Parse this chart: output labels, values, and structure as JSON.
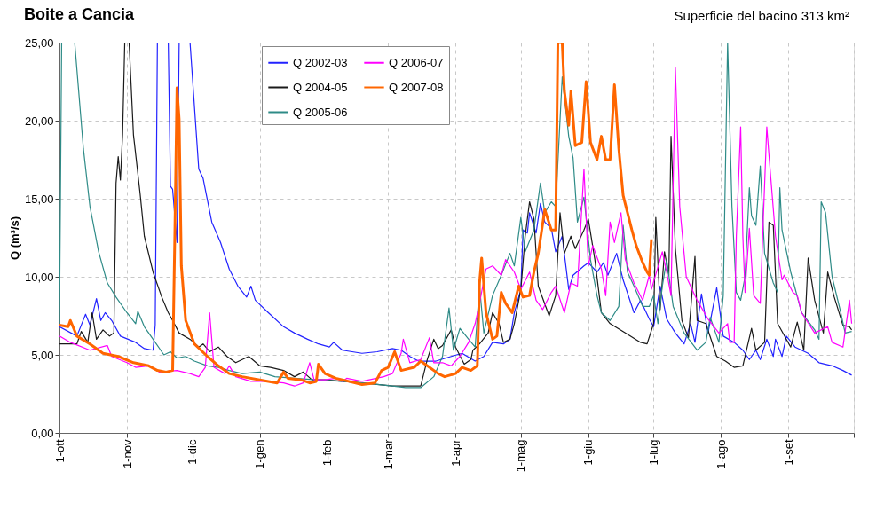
{
  "chart_data": {
    "type": "line",
    "title": "Boite a Cancia",
    "subtitle": "Superficie del bacino 313 km²",
    "ylabel": "Q (m³/s)",
    "xlim": [
      "2002-10-01",
      "2003-10-01"
    ],
    "xticks": [
      {
        "value": "2002-10-01",
        "label": "1-ott"
      },
      {
        "value": "2002-11-01",
        "label": "1-nov"
      },
      {
        "value": "2002-12-01",
        "label": "1-dic"
      },
      {
        "value": "2003-01-01",
        "label": "1-gen"
      },
      {
        "value": "2003-02-01",
        "label": "1-feb"
      },
      {
        "value": "2003-03-01",
        "label": "1-mar"
      },
      {
        "value": "2003-04-01",
        "label": "1-apr"
      },
      {
        "value": "2003-05-01",
        "label": "1-mag"
      },
      {
        "value": "2003-06-01",
        "label": "1-giu"
      },
      {
        "value": "2003-07-01",
        "label": "1-lug"
      },
      {
        "value": "2003-08-01",
        "label": "1-ago"
      },
      {
        "value": "2003-09-01",
        "label": "1-set"
      },
      {
        "value": "2003-10-01",
        "label": null
      }
    ],
    "ylim": [
      0,
      25
    ],
    "yticks": [
      {
        "value": 0,
        "label": "0,00"
      },
      {
        "value": 5,
        "label": "5,00"
      },
      {
        "value": 10,
        "label": "10,00"
      },
      {
        "value": 15,
        "label": "15,00"
      },
      {
        "value": 20,
        "label": "20,00"
      },
      {
        "value": 25,
        "label": "25,00"
      }
    ],
    "grid": true,
    "legend": "top",
    "line_style": "solid",
    "series": [
      {
        "name": "Q 2002-03",
        "color": "#2222ff",
        "x": [
          "2002-10-01",
          "2002-10-09",
          "2002-10-13",
          "2002-10-15",
          "2002-10-18",
          "2002-10-20",
          "2002-10-22",
          "2002-10-25",
          "2002-10-29",
          "2002-11-05",
          "2002-11-09",
          "2002-11-13",
          "2002-11-14",
          "2002-11-15",
          "2002-11-20",
          "2002-11-21",
          "2002-11-22",
          "2002-11-24",
          "2002-11-25",
          "2002-11-30",
          "2002-12-04",
          "2002-12-06",
          "2002-12-10",
          "2002-12-14",
          "2002-12-18",
          "2002-12-22",
          "2002-12-26",
          "2002-12-28",
          "2002-12-30",
          "2003-01-05",
          "2003-01-12",
          "2003-01-17",
          "2003-01-23",
          "2003-01-28",
          "2003-02-02",
          "2003-02-04",
          "2003-02-08",
          "2003-02-17",
          "2003-02-24",
          "2003-03-03",
          "2003-03-07",
          "2003-03-11",
          "2003-03-15",
          "2003-03-23",
          "2003-03-30",
          "2003-04-04",
          "2003-04-10",
          "2003-04-14",
          "2003-04-18",
          "2003-04-23",
          "2003-04-26",
          "2003-04-28",
          "2003-05-01",
          "2003-05-02",
          "2003-05-04",
          "2003-05-05",
          "2003-05-08",
          "2003-05-10",
          "2003-05-12",
          "2003-05-15",
          "2003-05-17",
          "2003-05-20",
          "2003-05-23",
          "2003-05-25",
          "2003-05-30",
          "2003-06-01",
          "2003-06-05",
          "2003-06-08",
          "2003-06-10",
          "2003-06-14",
          "2003-06-17",
          "2003-06-22",
          "2003-06-25",
          "2003-06-29",
          "2003-07-01",
          "2003-07-04",
          "2003-07-07",
          "2003-07-11",
          "2003-07-15",
          "2003-07-18",
          "2003-07-20",
          "2003-07-23",
          "2003-07-26",
          "2003-07-30",
          "2003-08-02",
          "2003-08-07",
          "2003-08-11",
          "2003-08-14",
          "2003-08-17",
          "2003-08-19",
          "2003-08-22",
          "2003-08-25",
          "2003-08-26",
          "2003-08-29",
          "2003-08-31",
          "2003-09-04",
          "2003-09-10",
          "2003-09-15",
          "2003-09-21",
          "2003-09-26",
          "2003-09-30"
        ],
        "values": [
          6.8,
          6.2,
          7.6,
          6.9,
          8.6,
          7.2,
          7.7,
          7.2,
          6.2,
          5.8,
          5.4,
          5.3,
          6.9,
          25,
          25,
          15.8,
          15.6,
          12.2,
          25,
          25,
          16.9,
          16.3,
          13.5,
          12.2,
          10.5,
          9.4,
          8.7,
          9.4,
          8.5,
          7.7,
          6.8,
          6.4,
          6.0,
          5.7,
          5.5,
          5.8,
          5.3,
          5.1,
          5.2,
          5.4,
          5.3,
          4.9,
          4.6,
          4.6,
          4.9,
          5.1,
          4.6,
          4.9,
          5.8,
          5.7,
          6.0,
          7.7,
          9.2,
          13.0,
          12.8,
          14.1,
          12.8,
          14.7,
          13.5,
          13.1,
          11.6,
          12.6,
          9.2,
          10.1,
          10.7,
          10.9,
          10.3,
          10.9,
          10.1,
          11.5,
          9.8,
          7.7,
          8.5,
          7.3,
          6.8,
          9.4,
          7.3,
          6.4,
          5.7,
          7.0,
          5.8,
          8.9,
          6.4,
          9.3,
          6.2,
          5.8,
          5.3,
          4.7,
          5.3,
          4.7,
          6.0,
          4.9,
          6.0,
          4.9,
          6.2,
          5.5,
          5.1,
          4.5,
          4.3,
          4.0,
          3.7
        ]
      },
      {
        "name": "Q 2004-05",
        "color": "#1a1a1a",
        "x": [
          "2002-10-01",
          "2002-10-09",
          "2002-10-11",
          "2002-10-14",
          "2002-10-16",
          "2002-10-18",
          "2002-10-21",
          "2002-10-24",
          "2002-10-26",
          "2002-10-27",
          "2002-10-28",
          "2002-10-29",
          "2002-10-30",
          "2002-10-31",
          "2002-11-02",
          "2002-11-04",
          "2002-11-07",
          "2002-11-09",
          "2002-11-13",
          "2002-11-17",
          "2002-11-20",
          "2002-11-22",
          "2002-11-25",
          "2002-11-30",
          "2002-12-04",
          "2002-12-06",
          "2002-12-09",
          "2002-12-13",
          "2002-12-17",
          "2002-12-21",
          "2002-12-27",
          "2003-01-01",
          "2003-01-06",
          "2003-01-12",
          "2003-01-17",
          "2003-01-21",
          "2003-01-25",
          "2003-01-31",
          "2003-02-08",
          "2003-02-17",
          "2003-02-24",
          "2003-03-03",
          "2003-03-11",
          "2003-03-16",
          "2003-03-19",
          "2003-03-22",
          "2003-03-24",
          "2003-03-26",
          "2003-03-30",
          "2003-04-01",
          "2003-04-05",
          "2003-04-08",
          "2003-04-09",
          "2003-04-12",
          "2003-04-16",
          "2003-04-18",
          "2003-04-21",
          "2003-04-23",
          "2003-04-26",
          "2003-04-28",
          "2003-05-01",
          "2003-05-03",
          "2003-05-05",
          "2003-05-07",
          "2003-05-09",
          "2003-05-14",
          "2003-05-17",
          "2003-05-19",
          "2003-05-21",
          "2003-05-24",
          "2003-05-26",
          "2003-05-30",
          "2003-06-01",
          "2003-06-04",
          "2003-06-07",
          "2003-06-11",
          "2003-06-18",
          "2003-06-25",
          "2003-06-28",
          "2003-07-01",
          "2003-07-02",
          "2003-07-04",
          "2003-07-06",
          "2003-07-08",
          "2003-07-09",
          "2003-07-11",
          "2003-07-14",
          "2003-07-17",
          "2003-07-20",
          "2003-07-21",
          "2003-07-25",
          "2003-07-30",
          "2003-08-03",
          "2003-08-07",
          "2003-08-11",
          "2003-08-15",
          "2003-08-17",
          "2003-08-21",
          "2003-08-23",
          "2003-08-25",
          "2003-08-27",
          "2003-09-02",
          "2003-09-05",
          "2003-09-08",
          "2003-09-10",
          "2003-09-13",
          "2003-09-17",
          "2003-09-19",
          "2003-09-22",
          "2003-09-26",
          "2003-09-29",
          "2003-09-30"
        ],
        "values": [
          5.7,
          5.7,
          6.5,
          5.8,
          7.7,
          6.0,
          6.6,
          6.2,
          6.4,
          16.0,
          17.7,
          16.2,
          19.1,
          25,
          25,
          19.1,
          15.4,
          12.6,
          10.3,
          8.7,
          7.7,
          7.2,
          6.4,
          6.0,
          5.5,
          5.7,
          5.2,
          5.5,
          4.9,
          4.5,
          4.9,
          4.3,
          4.2,
          4.0,
          3.6,
          3.9,
          3.4,
          3.4,
          3.3,
          3.2,
          3.1,
          3.0,
          3.0,
          3.0,
          4.7,
          6.0,
          5.4,
          5.6,
          6.6,
          5.5,
          4.4,
          4.7,
          5.3,
          5.7,
          6.4,
          7.7,
          7.0,
          5.8,
          6.0,
          7.0,
          9.2,
          12.6,
          14.8,
          13.7,
          9.4,
          7.5,
          8.8,
          14.1,
          11.5,
          12.6,
          11.8,
          13.0,
          13.7,
          11.1,
          7.7,
          7.0,
          6.4,
          5.8,
          5.7,
          7.0,
          13.8,
          7.9,
          11.6,
          10.1,
          19.0,
          11.8,
          7.2,
          6.1,
          11.3,
          7.2,
          7.0,
          4.9,
          4.6,
          4.2,
          4.3,
          6.7,
          5.3,
          5.8,
          13.5,
          13.3,
          7.0,
          5.5,
          7.1,
          5.3,
          11.2,
          8.5,
          6.4,
          10.3,
          8.7,
          6.9,
          6.8,
          6.6
        ]
      },
      {
        "name": "Q 2005-06",
        "color": "#2e8b87",
        "x": [
          "2002-10-01",
          "2002-10-02",
          "2002-10-08",
          "2002-10-12",
          "2002-10-15",
          "2002-10-19",
          "2002-10-23",
          "2002-10-27",
          "2002-11-01",
          "2002-11-05",
          "2002-11-06",
          "2002-11-09",
          "2002-11-13",
          "2002-11-18",
          "2002-11-21",
          "2002-11-24",
          "2002-11-28",
          "2002-12-02",
          "2002-12-08",
          "2002-12-13",
          "2002-12-18",
          "2002-12-24",
          "2003-01-01",
          "2003-01-08",
          "2003-01-17",
          "2003-01-27",
          "2003-02-08",
          "2003-02-17",
          "2003-03-03",
          "2003-03-09",
          "2003-03-16",
          "2003-03-22",
          "2003-03-26",
          "2003-03-29",
          "2003-03-31",
          "2003-04-03",
          "2003-04-07",
          "2003-04-10",
          "2003-04-12",
          "2003-04-14",
          "2003-04-18",
          "2003-04-22",
          "2003-04-26",
          "2003-04-28",
          "2003-05-01",
          "2003-05-03",
          "2003-05-07",
          "2003-05-10",
          "2003-05-12",
          "2003-05-15",
          "2003-05-17",
          "2003-05-20",
          "2003-05-23",
          "2003-05-25",
          "2003-05-27",
          "2003-05-30",
          "2003-06-02",
          "2003-06-05",
          "2003-06-07",
          "2003-06-11",
          "2003-06-15",
          "2003-06-17",
          "2003-06-19",
          "2003-06-22",
          "2003-06-26",
          "2003-06-29",
          "2003-07-01",
          "2003-07-03",
          "2003-07-05",
          "2003-07-07",
          "2003-07-10",
          "2003-07-15",
          "2003-07-21",
          "2003-07-25",
          "2003-07-27",
          "2003-07-31",
          "2003-08-02",
          "2003-08-04",
          "2003-08-06",
          "2003-08-08",
          "2003-08-10",
          "2003-08-12",
          "2003-08-14",
          "2003-08-15",
          "2003-08-17",
          "2003-08-19",
          "2003-08-21",
          "2003-08-25",
          "2003-08-27",
          "2003-08-28",
          "2003-08-29",
          "2003-09-02",
          "2003-09-07",
          "2003-09-13",
          "2003-09-15",
          "2003-09-16",
          "2003-09-18",
          "2003-09-21",
          "2003-09-25",
          "2003-09-27",
          "2003-09-30"
        ],
        "values": [
          7.0,
          25,
          25,
          18.2,
          14.5,
          11.6,
          9.6,
          8.7,
          7.7,
          7.0,
          7.8,
          6.8,
          6.0,
          5.0,
          5.2,
          4.8,
          4.9,
          4.6,
          4.3,
          4.2,
          4.0,
          3.8,
          3.9,
          3.6,
          3.5,
          3.4,
          3.3,
          3.2,
          3.0,
          2.9,
          2.9,
          3.6,
          4.9,
          8.0,
          5.3,
          6.7,
          6.0,
          5.5,
          9.4,
          6.4,
          8.8,
          10.1,
          11.5,
          10.7,
          13.8,
          11.6,
          13.0,
          16.0,
          14.1,
          14.8,
          14.5,
          22.8,
          19.0,
          17.6,
          13.5,
          15.1,
          11.1,
          8.8,
          7.7,
          7.2,
          8.1,
          13.3,
          10.3,
          9.4,
          8.1,
          8.1,
          8.8,
          7.0,
          9.4,
          11.1,
          8.1,
          6.4,
          5.3,
          5.8,
          7.4,
          5.8,
          8.8,
          25,
          14.5,
          9.0,
          8.5,
          10.0,
          15.7,
          13.9,
          13.3,
          17.1,
          11.5,
          9.6,
          9.0,
          15.7,
          13.0,
          10.3,
          7.7,
          6.6,
          6.0,
          14.8,
          14.1,
          10.0,
          7.7,
          6.4,
          6.5
        ]
      },
      {
        "name": "Q 2006-07",
        "color": "#ff00ff",
        "x": [
          "2002-10-01",
          "2002-10-06",
          "2002-10-15",
          "2002-10-23",
          "2002-10-25",
          "2002-11-01",
          "2002-11-05",
          "2002-11-11",
          "2002-11-16",
          "2002-11-24",
          "2002-11-30",
          "2002-12-04",
          "2002-12-07",
          "2002-12-09",
          "2002-12-11",
          "2002-12-16",
          "2002-12-18",
          "2002-12-21",
          "2002-12-28",
          "2003-01-04",
          "2003-01-12",
          "2003-01-17",
          "2003-01-21",
          "2003-01-24",
          "2003-01-26",
          "2003-01-31",
          "2003-02-05",
          "2003-02-08",
          "2003-02-10",
          "2003-02-17",
          "2003-02-27",
          "2003-03-03",
          "2003-03-07",
          "2003-03-08",
          "2003-03-11",
          "2003-03-16",
          "2003-03-20",
          "2003-03-22",
          "2003-03-26",
          "2003-03-30",
          "2003-04-03",
          "2003-04-07",
          "2003-04-10",
          "2003-04-12",
          "2003-04-15",
          "2003-04-18",
          "2003-04-22",
          "2003-04-24",
          "2003-04-28",
          "2003-05-01",
          "2003-05-05",
          "2003-05-08",
          "2003-05-11",
          "2003-05-15",
          "2003-05-17",
          "2003-05-21",
          "2003-05-24",
          "2003-05-27",
          "2003-05-30",
          "2003-06-01",
          "2003-06-03",
          "2003-06-07",
          "2003-06-09",
          "2003-06-11",
          "2003-06-13",
          "2003-06-16",
          "2003-06-18",
          "2003-06-22",
          "2003-06-26",
          "2003-06-29",
          "2003-06-30",
          "2003-07-05",
          "2003-07-07",
          "2003-07-09",
          "2003-07-11",
          "2003-07-13",
          "2003-07-16",
          "2003-07-21",
          "2003-07-26",
          "2003-07-31",
          "2003-08-04",
          "2003-08-05",
          "2003-08-07",
          "2003-08-08",
          "2003-08-10",
          "2003-08-11",
          "2003-08-12",
          "2003-08-14",
          "2003-08-16",
          "2003-08-19",
          "2003-08-20",
          "2003-08-22",
          "2003-08-23",
          "2003-08-26",
          "2003-08-29",
          "2003-08-30",
          "2003-09-03",
          "2003-09-05",
          "2003-09-07",
          "2003-09-13",
          "2003-09-19",
          "2003-09-21",
          "2003-09-26",
          "2003-09-29",
          "2003-09-30"
        ],
        "values": [
          6.2,
          5.8,
          5.3,
          5.6,
          4.9,
          4.5,
          4.2,
          4.3,
          3.9,
          4.0,
          3.8,
          3.6,
          4.2,
          7.7,
          4.2,
          3.8,
          4.3,
          3.6,
          3.3,
          3.3,
          3.2,
          3.0,
          3.2,
          4.5,
          3.4,
          3.4,
          3.5,
          3.3,
          3.5,
          3.3,
          3.6,
          3.8,
          5.1,
          6.0,
          4.5,
          4.7,
          6.1,
          4.5,
          4.5,
          4.3,
          4.9,
          5.8,
          7.0,
          8.3,
          10.5,
          10.7,
          10.1,
          11.1,
          10.3,
          9.2,
          10.3,
          8.5,
          7.9,
          9.0,
          9.4,
          7.7,
          9.6,
          9.4,
          16.9,
          10.7,
          12.0,
          10.5,
          8.8,
          13.5,
          12.2,
          14.1,
          11.1,
          9.6,
          8.5,
          10.1,
          9.2,
          11.6,
          10.3,
          8.8,
          23.4,
          14.5,
          10.0,
          8.5,
          7.3,
          6.4,
          7.0,
          5.8,
          5.8,
          12.6,
          19.6,
          12.6,
          9.0,
          13.1,
          8.8,
          8.3,
          12.2,
          19.6,
          17.8,
          12.6,
          9.8,
          10.1,
          9.0,
          8.8,
          7.7,
          6.4,
          6.8,
          5.8,
          5.5,
          8.5,
          7.0
        ]
      },
      {
        "name": "Q 2007-08",
        "color": "#ff6600",
        "x": [
          "2002-10-01",
          "2002-10-05",
          "2002-10-06",
          "2002-10-09",
          "2002-10-15",
          "2002-10-21",
          "2002-10-28",
          "2002-11-04",
          "2002-11-11",
          "2002-11-15",
          "2002-11-19",
          "2002-11-22",
          "2002-11-23",
          "2002-11-24",
          "2002-11-25",
          "2002-11-26",
          "2002-11-28",
          "2002-12-02",
          "2002-12-08",
          "2002-12-13",
          "2002-12-18",
          "2002-12-24",
          "2003-01-01",
          "2003-01-09",
          "2003-01-12",
          "2003-01-14",
          "2003-01-20",
          "2003-01-24",
          "2003-01-27",
          "2003-01-28",
          "2003-01-31",
          "2003-02-05",
          "2003-02-08",
          "2003-02-17",
          "2003-02-23",
          "2003-02-26",
          "2003-03-01",
          "2003-03-04",
          "2003-03-07",
          "2003-03-13",
          "2003-03-16",
          "2003-03-20",
          "2003-03-24",
          "2003-03-27",
          "2003-04-01",
          "2003-04-04",
          "2003-04-08",
          "2003-04-11",
          "2003-04-12",
          "2003-04-13",
          "2003-04-15",
          "2003-04-18",
          "2003-04-20",
          "2003-04-22",
          "2003-04-24",
          "2003-04-27",
          "2003-04-30",
          "2003-05-02",
          "2003-05-05",
          "2003-05-07",
          "2003-05-09",
          "2003-05-12",
          "2003-05-15",
          "2003-05-17",
          "2003-05-18",
          "2003-05-20",
          "2003-05-21",
          "2003-05-23",
          "2003-05-24",
          "2003-05-26",
          "2003-05-29",
          "2003-05-31",
          "2003-06-02",
          "2003-06-05",
          "2003-06-07",
          "2003-06-09",
          "2003-06-11",
          "2003-06-13",
          "2003-06-15",
          "2003-06-17",
          "2003-06-21",
          "2003-06-23",
          "2003-06-26",
          "2003-06-28",
          "2003-06-29",
          "2003-06-30"
        ],
        "values": [
          6.9,
          6.8,
          7.2,
          6.2,
          5.7,
          5.1,
          4.9,
          4.5,
          4.3,
          4.0,
          3.9,
          4.0,
          12.6,
          22.1,
          20.1,
          10.7,
          7.2,
          5.7,
          4.9,
          4.3,
          3.8,
          3.6,
          3.4,
          3.2,
          3.9,
          3.5,
          3.4,
          3.2,
          3.3,
          4.4,
          3.8,
          3.5,
          3.4,
          3.1,
          3.2,
          4.0,
          4.2,
          5.2,
          4.0,
          4.2,
          4.6,
          4.2,
          3.8,
          3.6,
          3.8,
          4.2,
          4.0,
          4.3,
          9.6,
          11.2,
          7.7,
          6.0,
          6.2,
          9.0,
          8.3,
          7.7,
          9.4,
          8.7,
          8.8,
          10.3,
          11.5,
          14.3,
          13.0,
          13.0,
          25,
          25,
          21.9,
          19.7,
          21.9,
          18.4,
          18.6,
          22.5,
          18.6,
          17.5,
          19.0,
          17.5,
          17.5,
          22.3,
          18.2,
          15.2,
          13.0,
          12.0,
          10.9,
          10.3,
          10.1,
          12.4
        ]
      }
    ]
  }
}
